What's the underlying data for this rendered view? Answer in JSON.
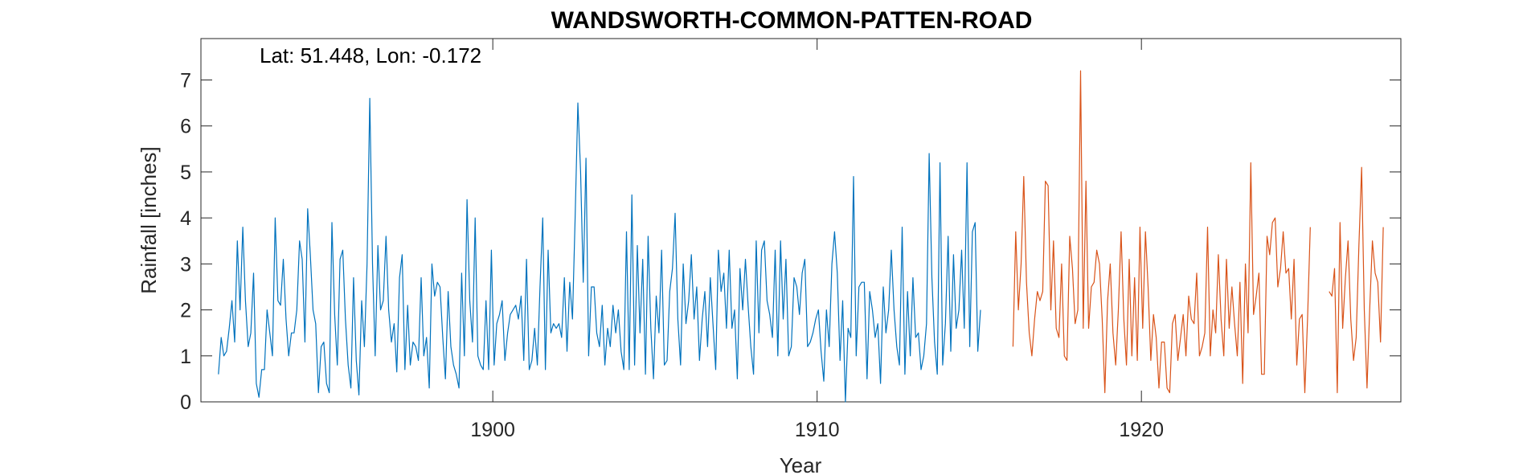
{
  "chart_data": {
    "type": "line",
    "title": "WANDSWORTH-COMMON-PATTEN-ROAD",
    "annotation": "Lat: 51.448, Lon: -0.172",
    "xlabel": "Year",
    "ylabel": "Rainfall [inches]",
    "xlim": [
      1891,
      1928
    ],
    "ylim": [
      0,
      7.9
    ],
    "x_ticks": [
      1900,
      1910,
      1920
    ],
    "y_ticks": [
      0,
      1,
      2,
      3,
      4,
      5,
      6,
      7
    ],
    "grid": false,
    "legend": "none",
    "series": [
      {
        "color": "#0072BD",
        "start_year": 1891.54,
        "step_years": 0.08333,
        "values": [
          0.6,
          1.4,
          1.0,
          1.1,
          1.6,
          2.2,
          1.3,
          3.5,
          2.0,
          3.8,
          2.2,
          1.2,
          1.5,
          2.8,
          0.4,
          0.1,
          0.7,
          0.7,
          2.0,
          1.5,
          1.0,
          4.0,
          2.2,
          2.1,
          3.1,
          1.8,
          1.0,
          1.5,
          1.5,
          2.0,
          3.5,
          3.1,
          1.3,
          4.2,
          3.2,
          2.0,
          1.7,
          0.2,
          1.2,
          1.3,
          0.4,
          0.2,
          3.9,
          1.9,
          0.8,
          3.1,
          3.3,
          1.8,
          0.8,
          0.3,
          2.7,
          0.9,
          0.15,
          2.2,
          1.2,
          3.0,
          6.6,
          3.0,
          1.0,
          3.4,
          2.0,
          2.2,
          3.6,
          2.0,
          1.3,
          1.7,
          0.65,
          2.7,
          3.2,
          0.7,
          2.1,
          0.8,
          1.3,
          1.2,
          0.9,
          2.7,
          1.0,
          1.4,
          0.3,
          3.0,
          2.3,
          2.6,
          2.5,
          1.4,
          0.5,
          2.4,
          1.2,
          0.8,
          0.6,
          0.3,
          2.8,
          1.0,
          4.4,
          2.2,
          1.3,
          4.0,
          1.0,
          0.8,
          0.7,
          2.2,
          0.7,
          3.3,
          0.8,
          1.7,
          1.9,
          2.2,
          0.9,
          1.5,
          1.9,
          2.0,
          2.1,
          1.8,
          2.3,
          0.9,
          3.1,
          0.7,
          0.9,
          1.6,
          0.8,
          2.5,
          4.0,
          0.7,
          3.3,
          1.5,
          1.7,
          1.6,
          1.7,
          1.4,
          2.7,
          1.1,
          2.6,
          1.8,
          4.0,
          6.5,
          5.0,
          2.6,
          5.3,
          1.0,
          2.5,
          2.5,
          1.5,
          1.2,
          2.1,
          0.8,
          1.6,
          1.2,
          2.1,
          1.5,
          2.0,
          1.1,
          0.7,
          3.7,
          0.7,
          4.5,
          0.8,
          3.4,
          1.5,
          3.1,
          0.6,
          3.6,
          1.6,
          0.5,
          2.3,
          1.5,
          3.3,
          0.8,
          0.9,
          2.4,
          2.9,
          4.1,
          1.8,
          0.8,
          3.0,
          1.7,
          2.2,
          3.2,
          1.8,
          2.5,
          0.9,
          1.8,
          2.4,
          1.2,
          2.7,
          1.7,
          0.7,
          3.3,
          2.4,
          2.8,
          1.6,
          3.3,
          1.6,
          2.0,
          0.5,
          2.9,
          2.0,
          3.1,
          2.1,
          1.2,
          0.6,
          3.5,
          1.5,
          3.3,
          3.5,
          2.2,
          1.9,
          1.4,
          3.3,
          1.0,
          3.5,
          1.8,
          3.1,
          1.0,
          1.2,
          2.7,
          2.5,
          1.9,
          2.8,
          3.1,
          1.2,
          1.3,
          1.5,
          1.8,
          2.0,
          1.1,
          0.45,
          2.0,
          1.2,
          3.0,
          3.7,
          2.8,
          0.9,
          2.2,
          0.0,
          1.6,
          1.4,
          4.9,
          1.0,
          2.5,
          2.6,
          2.6,
          0.5,
          2.4,
          2.0,
          1.4,
          1.7,
          0.4,
          2.5,
          1.5,
          2.0,
          3.3,
          2.0,
          1.2,
          0.8,
          3.8,
          0.6,
          2.4,
          1.0,
          2.7,
          1.4,
          1.5,
          0.7,
          1.0,
          1.7,
          5.4,
          2.7,
          1.3,
          0.6,
          5.2,
          0.8,
          1.7,
          3.6,
          1.1,
          3.2,
          1.6,
          2.0,
          3.3,
          1.6,
          5.2,
          1.2,
          3.7,
          3.9,
          1.1,
          2.0
        ]
      },
      {
        "color": "#D95319",
        "start_year": 1916.04,
        "step_years": 0.08333,
        "values": [
          1.2,
          3.7,
          2.0,
          3.0,
          4.9,
          2.6,
          1.5,
          1.0,
          1.8,
          2.4,
          2.2,
          2.4,
          4.8,
          4.7,
          2.0,
          3.5,
          1.6,
          1.4,
          3.0,
          1.0,
          0.9,
          3.6,
          2.9,
          1.7,
          2.0,
          7.2,
          1.6,
          4.8,
          1.6,
          2.5,
          2.6,
          3.3,
          3.0,
          1.8,
          0.2,
          2.2,
          3.0,
          1.5,
          0.8,
          2.0,
          3.7,
          1.8,
          0.8,
          3.1,
          1.0,
          2.7,
          0.9,
          3.8,
          1.6,
          3.7,
          2.5,
          0.9,
          1.9,
          1.4,
          0.3,
          1.3,
          1.3,
          0.3,
          0.2,
          1.7,
          1.9,
          0.9,
          1.4,
          1.9,
          1.0,
          2.3,
          1.8,
          1.7,
          2.8,
          1.0,
          1.2,
          1.5,
          3.8,
          1.0,
          2.0,
          1.5,
          3.2,
          1.8,
          1.0,
          3.1,
          1.6,
          2.5,
          1.7,
          1.0,
          2.6,
          0.4,
          3.0,
          1.5,
          5.2,
          1.9,
          2.3,
          2.8,
          0.6,
          0.6,
          3.6,
          3.2,
          3.9,
          4.0,
          2.5,
          2.9,
          3.7,
          2.8,
          2.9,
          1.8,
          3.1,
          0.8,
          1.8,
          1.9,
          0.2,
          1.8,
          3.8,
          null,
          null,
          null,
          null,
          null,
          null,
          2.4,
          2.3,
          2.9,
          0.2,
          3.9,
          1.6,
          2.7,
          3.5,
          1.8,
          0.9,
          1.4,
          3.4,
          5.1,
          2.0,
          0.3,
          2.0,
          3.5,
          2.8,
          2.6,
          1.3,
          3.8
        ]
      }
    ]
  }
}
